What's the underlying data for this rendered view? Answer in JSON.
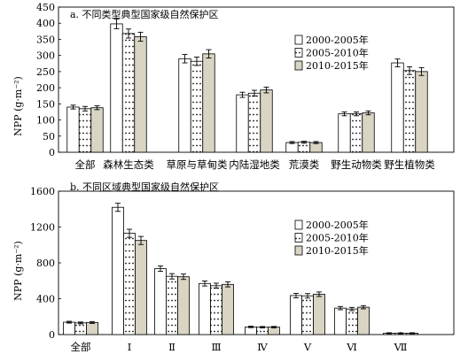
{
  "chart_data": [
    {
      "type": "bar",
      "title": "a. 不同类型典型国家级自然保护区",
      "ylabel": "NPP (g·m⁻²)",
      "ylim": [
        0,
        450
      ],
      "yticks": [
        0,
        50,
        100,
        150,
        200,
        250,
        300,
        350,
        400,
        450
      ],
      "categories": [
        "全部",
        "森林生态类",
        "草原与草甸类",
        "内陆湿地类",
        "荒漠类",
        "野生动物类",
        "野生植物类"
      ],
      "series": [
        {
          "name": "2000-2005年",
          "values": [
            140,
            398,
            290,
            178,
            30,
            119,
            277
          ],
          "errors": [
            6,
            15,
            13,
            8,
            3,
            6,
            12
          ],
          "fill": "#ffffff",
          "pattern": "plain"
        },
        {
          "name": "2005-2010年",
          "values": [
            135,
            368,
            282,
            183,
            31,
            119,
            253
          ],
          "errors": [
            7,
            14,
            13,
            9,
            3,
            6,
            12
          ],
          "fill": "#ffffff",
          "pattern": "dots"
        },
        {
          "name": "2010-2015年",
          "values": [
            138,
            358,
            305,
            193,
            30,
            122,
            250
          ],
          "errors": [
            6,
            14,
            13,
            9,
            3,
            6,
            12
          ],
          "fill": "#d9d4c3",
          "pattern": "plain"
        }
      ],
      "legend_position": "right"
    },
    {
      "type": "bar",
      "title": "b. 不同区域典型国家级自然保护区",
      "ylabel": "NPP (g·m⁻²)",
      "ylim": [
        0,
        1600
      ],
      "yticks": [
        0,
        400,
        800,
        1200,
        1600
      ],
      "categories": [
        "全部",
        "Ⅰ",
        "Ⅱ",
        "Ⅲ",
        "Ⅳ",
        "Ⅴ",
        "Ⅵ",
        "Ⅶ"
      ],
      "series": [
        {
          "name": "2000-2005年",
          "values": [
            138,
            1420,
            735,
            570,
            85,
            435,
            295,
            15
          ],
          "errors": [
            10,
            45,
            30,
            28,
            8,
            25,
            18,
            5
          ],
          "fill": "#ffffff",
          "pattern": "plain"
        },
        {
          "name": "2005-2010年",
          "values": [
            130,
            1130,
            650,
            545,
            82,
            432,
            285,
            14
          ],
          "errors": [
            10,
            45,
            30,
            28,
            8,
            25,
            18,
            5
          ],
          "fill": "#ffffff",
          "pattern": "dots"
        },
        {
          "name": "2010-2015年",
          "values": [
            135,
            1050,
            645,
            560,
            83,
            450,
            305,
            15
          ],
          "errors": [
            10,
            45,
            30,
            28,
            8,
            25,
            18,
            5
          ],
          "fill": "#d9d4c3",
          "pattern": "plain"
        }
      ],
      "legend_position": "right"
    }
  ]
}
